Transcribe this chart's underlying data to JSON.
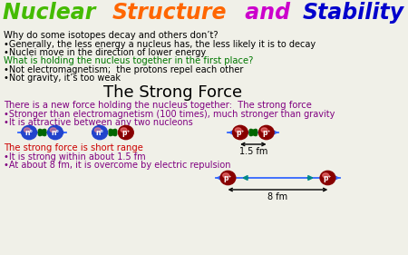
{
  "bg_color": "#f0f0e8",
  "title_parts": [
    {
      "text": "Nuclear ",
      "color": "#44bb00"
    },
    {
      "text": "Structure",
      "color": "#ff6600"
    },
    {
      "text": " and ",
      "color": "#cc00cc"
    },
    {
      "text": "Stability",
      "color": "#0000cc"
    }
  ],
  "section1_header": "Why do some isotopes decay and others don’t?",
  "section1_bullets": [
    "•Generally, the less energy a nucleus has, the less likely it is to decay",
    "•Nuclei move in the direction of lower energy"
  ],
  "section2_header": "What is holding the nucleus together in the first place?",
  "section2_bullets": [
    "•Not electromagnetism;  the protons repel each other",
    "•Not gravity, it’s too weak"
  ],
  "strong_force_title": "The Strong Force",
  "section3_header": "There is a new force holding the nucleus together:  The strong force",
  "section3_bullets": [
    "•Stronger than electromagnetism (100 times), much stronger than gravity",
    "•It is attractive between any two nucleons"
  ],
  "section4_header": "The strong force is short range",
  "section4_bullets": [
    "•It is strong within about 1.5 fm",
    "•At about 8 fm, it is overcome by electric repulsion"
  ],
  "text_color_black": "#000000",
  "text_color_purple": "#800080",
  "text_color_green": "#007700",
  "neutron_color": "#2244cc",
  "proton_color": "#880000",
  "arrow_color_blue": "#3366ff",
  "arrow_color_green": "#006600",
  "arrow_color_cyan": "#008888",
  "title_fontsize": 17,
  "header_fontsize": 7.2,
  "bullet_fontsize": 7.0,
  "strong_title_fontsize": 13
}
